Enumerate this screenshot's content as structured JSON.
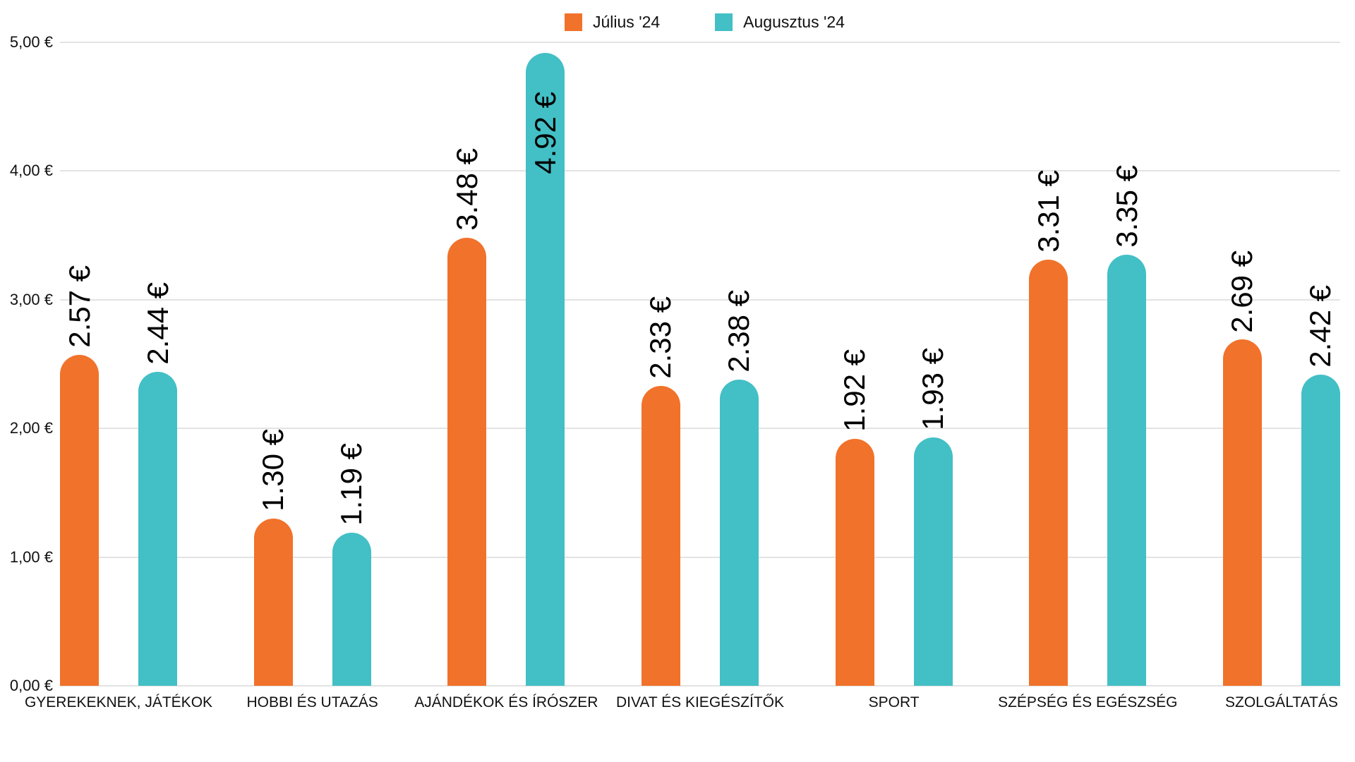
{
  "chart_data": {
    "type": "bar",
    "title": "",
    "categories": [
      "GYEREKEKNEK, JÁTÉKOK",
      "HOBBI ÉS UTAZÁS",
      "AJÁNDÉKOK ÉS ÍRÓSZER",
      "DIVAT ÉS KIEGÉSZÍTŐK",
      "SPORT",
      "SZÉPSÉG ÉS EGÉSZSÉG",
      "SZOLGÁLTATÁS"
    ],
    "series": [
      {
        "name": "Július '24",
        "color": "#F1722A",
        "values": [
          2.57,
          1.3,
          3.48,
          2.33,
          1.92,
          3.31,
          2.69
        ],
        "labels": [
          "2.57 €",
          "1.30 €",
          "3.48 €",
          "2.33 €",
          "1.92 €",
          "3.31 €",
          "2.69 €"
        ]
      },
      {
        "name": "Augusztus '24",
        "color": "#43BFC6",
        "values": [
          2.44,
          1.19,
          4.92,
          2.38,
          1.93,
          3.35,
          2.42
        ],
        "labels": [
          "2.44 €",
          "1.19 €",
          "4.92 €",
          "2.38 €",
          "1.93 €",
          "3.35 €",
          "2.42 €"
        ]
      }
    ],
    "xlabel": "",
    "ylabel": "",
    "ylim": [
      0,
      5
    ],
    "ytick_step": 1,
    "yticks": [
      "0,00 €",
      "1,00 €",
      "2,00 €",
      "3,00 €",
      "4,00 €",
      "5,00 €"
    ],
    "grid": true,
    "gridline_color": "#e3e3e3",
    "legend_position": "top-center",
    "value_label_rotation_deg": -90
  }
}
